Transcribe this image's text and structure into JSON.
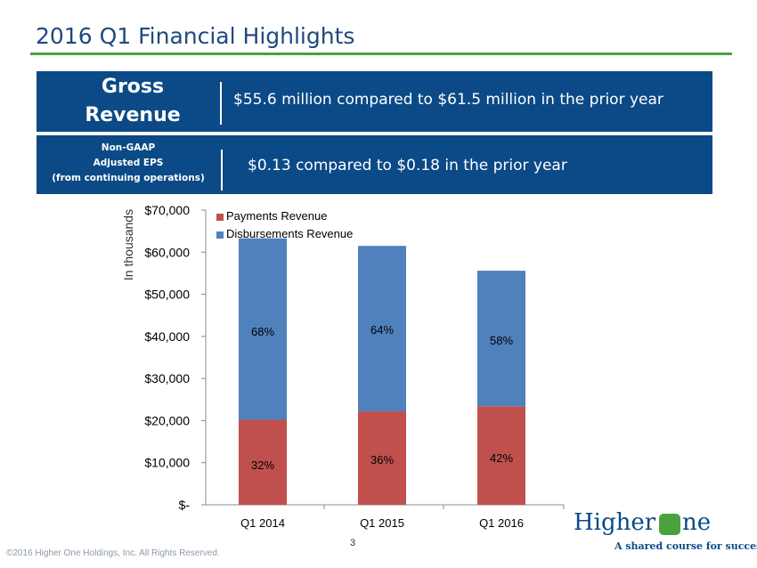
{
  "slide": {
    "title": "2016 Q1 Financial Highlights",
    "page_number": "3",
    "copyright": "©2016 Higher One Holdings, Inc. All Rights Reserved."
  },
  "highlights": {
    "gross_revenue": {
      "label_line1": "Gross",
      "label_line2": "Revenue",
      "value": "$55.6 million compared to $61.5 million in the prior year"
    },
    "eps": {
      "label_line1": "Non-GAAP",
      "label_line2": "Adjusted EPS",
      "label_line3": "(from continuing operations)",
      "value": "$0.13 compared to $0.18 in the prior year"
    }
  },
  "logo": {
    "word": "Higher",
    "word2": "ne",
    "tagline": "A shared course for success"
  },
  "colors": {
    "title": "#1f497d",
    "rule": "#4aa23f",
    "panel": "#0b4a86",
    "payments": "#c0504d",
    "disbursements": "#4f81bd"
  },
  "chart_data": {
    "type": "bar",
    "stacked": true,
    "categories": [
      "Q1 2014",
      "Q1 2015",
      "Q1 2016"
    ],
    "series": [
      {
        "name": "Payments Revenue",
        "values": [
          20200,
          22200,
          23400
        ],
        "labels": [
          "32%",
          "36%",
          "42%"
        ],
        "color": "#c0504d"
      },
      {
        "name": "Disbursements Revenue",
        "values": [
          43100,
          39300,
          32200
        ],
        "labels": [
          "68%",
          "64%",
          "58%"
        ],
        "color": "#4f81bd"
      }
    ],
    "ylabel": "In thousands",
    "ylim": [
      0,
      70000
    ],
    "yticks": [
      0,
      10000,
      20000,
      30000,
      40000,
      50000,
      60000,
      70000
    ],
    "ytick_labels": [
      "$-",
      "$10,000",
      "$20,000",
      "$30,000",
      "$40,000",
      "$50,000",
      "$60,000",
      "$70,000"
    ],
    "grid": false,
    "legend": "top-left"
  }
}
